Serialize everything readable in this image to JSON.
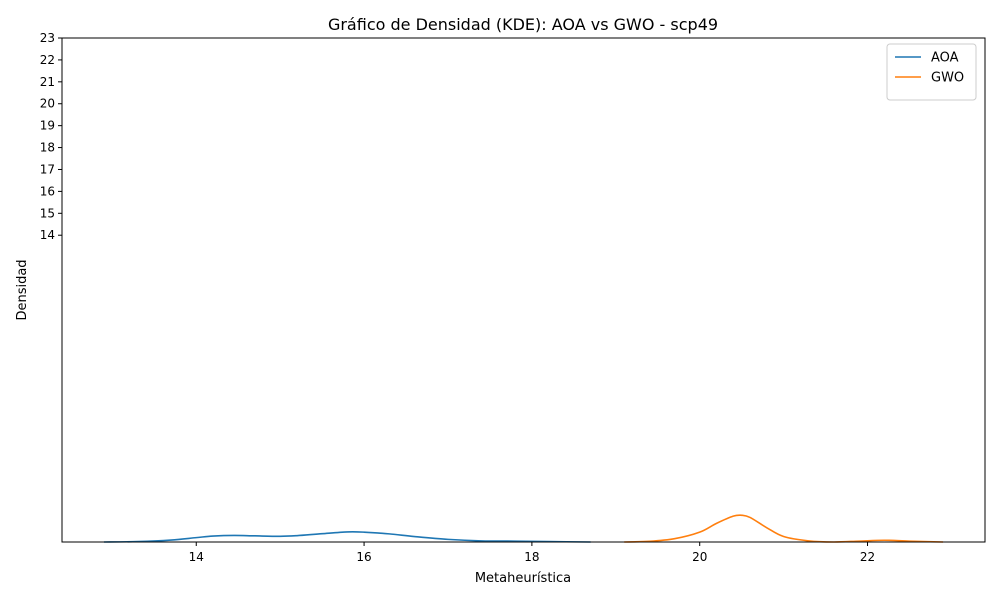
{
  "chart_data": {
    "type": "line",
    "title": "Gráfico de Densidad (KDE): AOA vs GWO - scp49",
    "xlabel": "Metaheurística",
    "ylabel": "Densidad",
    "xlim": [
      12.4,
      23.4
    ],
    "ylim": [
      0,
      23
    ],
    "x_ticks": [
      14,
      16,
      18,
      20,
      22
    ],
    "x_tick_labels": [
      "14",
      "16",
      "18",
      "20",
      "22"
    ],
    "y_ticks": [
      14,
      15,
      16,
      17,
      18,
      19,
      20,
      21,
      22,
      23
    ],
    "y_tick_labels": [
      "14",
      "15",
      "16",
      "17",
      "18",
      "19",
      "20",
      "21",
      "22",
      "23"
    ],
    "grid": false,
    "legend_position": "top-right",
    "series": [
      {
        "name": "AOA",
        "color": "#1f77b4",
        "x": [
          12.9,
          13.3,
          13.7,
          14.0,
          14.2,
          14.45,
          14.7,
          15.0,
          15.2,
          15.5,
          15.8,
          16.0,
          16.3,
          16.6,
          17.0,
          17.4,
          17.8,
          18.2,
          18.7
        ],
        "y": [
          0.0,
          0.02,
          0.09,
          0.2,
          0.27,
          0.3,
          0.28,
          0.26,
          0.29,
          0.38,
          0.46,
          0.45,
          0.37,
          0.25,
          0.12,
          0.05,
          0.04,
          0.02,
          0.0
        ]
      },
      {
        "name": "GWO",
        "color": "#ff7f0e",
        "x": [
          19.1,
          19.4,
          19.7,
          20.0,
          20.2,
          20.4,
          20.5,
          20.6,
          20.8,
          21.0,
          21.3,
          21.6,
          21.9,
          22.2,
          22.5,
          22.9
        ],
        "y": [
          0.0,
          0.03,
          0.15,
          0.45,
          0.85,
          1.18,
          1.22,
          1.12,
          0.65,
          0.25,
          0.05,
          0.0,
          0.04,
          0.08,
          0.04,
          0.0
        ]
      }
    ]
  }
}
